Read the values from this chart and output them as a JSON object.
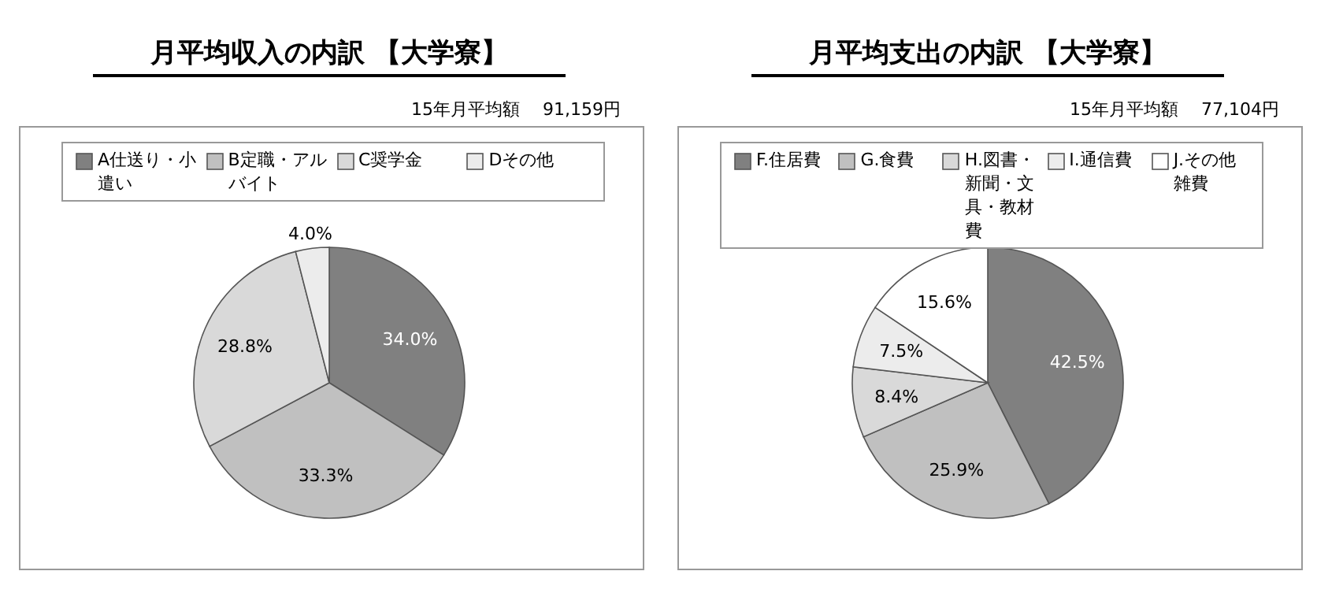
{
  "chart_data": [
    {
      "type": "pie",
      "title": "月平均収入の内訳 【大学寮】",
      "subtitle": "15年月平均額　 91,159円",
      "categories": [
        "A仕送り・小遣い",
        "B定職・アルバイト",
        "C奨学金",
        "Dその他"
      ],
      "values": [
        34.0,
        33.3,
        28.8,
        4.0
      ],
      "value_labels": [
        "34.0%",
        "33.3%",
        "28.8%",
        "4.0%"
      ],
      "colors": [
        "#808080",
        "#c0c0c0",
        "#d9d9d9",
        "#ececec"
      ],
      "legend": "top"
    },
    {
      "type": "pie",
      "title": "月平均支出の内訳 【大学寮】",
      "subtitle": "15年月平均額　 77,104円",
      "categories": [
        "F.住居費",
        "G.食費",
        "H.図書・新聞・文具・教材費",
        "I.通信費",
        "J.その他雑費"
      ],
      "values": [
        42.5,
        25.9,
        8.4,
        7.5,
        15.6
      ],
      "value_labels": [
        "42.5%",
        "25.9%",
        "8.4%",
        "7.5%",
        "15.6%"
      ],
      "colors": [
        "#808080",
        "#c0c0c0",
        "#d9d9d9",
        "#ececec",
        "#ffffff"
      ],
      "legend": "top"
    }
  ]
}
